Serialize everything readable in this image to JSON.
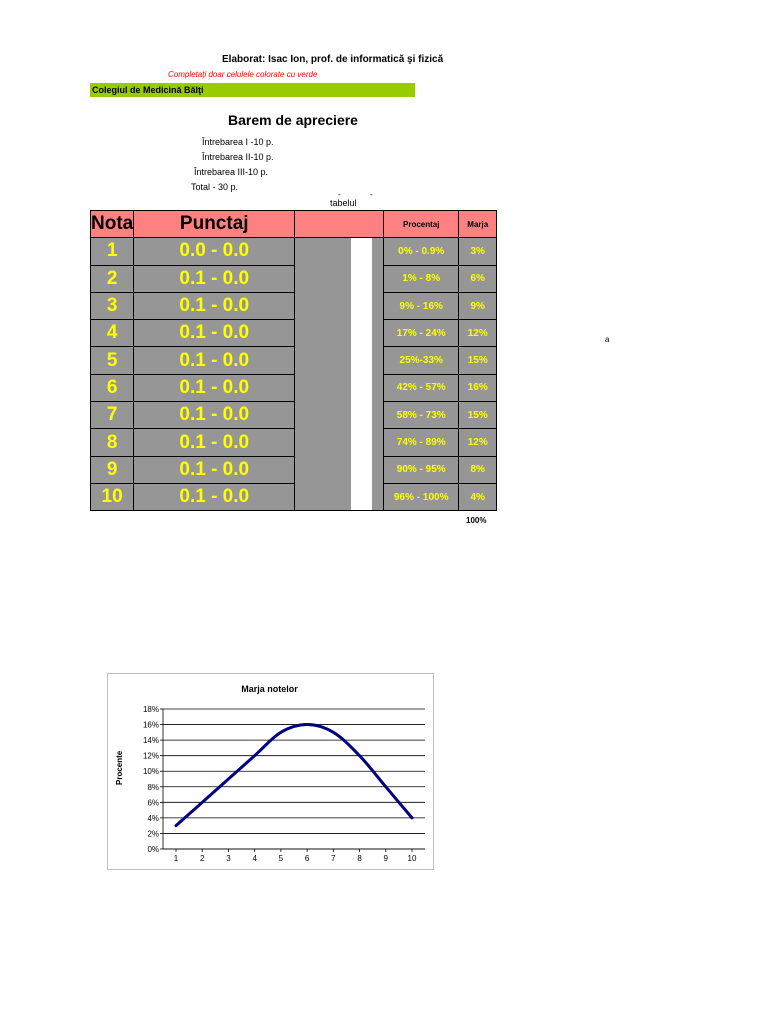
{
  "header": {
    "author": "Elaborat:  Isac Ion, prof. de informatică şi fizică",
    "note": "Completaţi doar celulele colorate cu verde",
    "college": "Colegiul de Medicină Bălţi"
  },
  "title": "Barem de apreciere",
  "questions": [
    "Întrebarea I -10 p.",
    "Întrebarea II-10 p.",
    "Întrebarea III-10 p.",
    "Total - 30 p."
  ],
  "table_label": "tabelul",
  "stray_tick": "-",
  "stray_letter": "a",
  "table": {
    "headers": {
      "nota": "Nota",
      "punctaj": "Punctaj",
      "blank": "",
      "procentaj": "Procentaj",
      "marja": "Marja"
    },
    "rows": [
      {
        "nota": "1",
        "punctaj": "0.0  -  0.0",
        "procentaj": "0% - 0.9%",
        "marja": "3%"
      },
      {
        "nota": "2",
        "punctaj": "0.1  -  0.0",
        "procentaj": "1% - 8%",
        "marja": "6%"
      },
      {
        "nota": "3",
        "punctaj": "0.1  -  0.0",
        "procentaj": "9% - 16%",
        "marja": "9%"
      },
      {
        "nota": "4",
        "punctaj": "0.1  -  0.0",
        "procentaj": "17% - 24%",
        "marja": "12%"
      },
      {
        "nota": "5",
        "punctaj": "0.1  -  0.0",
        "procentaj": "25%-33%",
        "marja": "15%"
      },
      {
        "nota": "6",
        "punctaj": "0.1  -  0.0",
        "procentaj": "42% - 57%",
        "marja": "16%"
      },
      {
        "nota": "7",
        "punctaj": "0.1  -  0.0",
        "procentaj": "58% - 73%",
        "marja": "15%"
      },
      {
        "nota": "8",
        "punctaj": "0.1  -  0.0",
        "procentaj": "74% - 89%",
        "marja": "12%"
      },
      {
        "nota": "9",
        "punctaj": "0.1  -  0.0",
        "procentaj": "90% - 95%",
        "marja": "8%"
      },
      {
        "nota": "10",
        "punctaj": "0.1  -  0.0",
        "procentaj": "96% - 100%",
        "marja": "4%"
      }
    ],
    "total_marja": "100%"
  },
  "colors": {
    "header_fill": "#ff8080",
    "cell_fill": "#969696",
    "cell_text": "#ffff00",
    "college_fill": "#99cc00",
    "note_text": "#ff0000",
    "series_line": "#000080"
  },
  "chart_data": {
    "type": "line",
    "title": "Marja notelor",
    "xlabel": "",
    "ylabel": "Procente",
    "x": [
      1,
      2,
      3,
      4,
      5,
      6,
      7,
      8,
      9,
      10
    ],
    "series": [
      {
        "values": [
          3,
          6,
          9,
          12,
          15,
          16,
          15,
          12,
          8,
          4
        ]
      }
    ],
    "ylim": [
      0,
      18
    ],
    "ytick_step": 2,
    "y_format": "percent",
    "grid": true,
    "smooth": true,
    "legend": "none"
  }
}
